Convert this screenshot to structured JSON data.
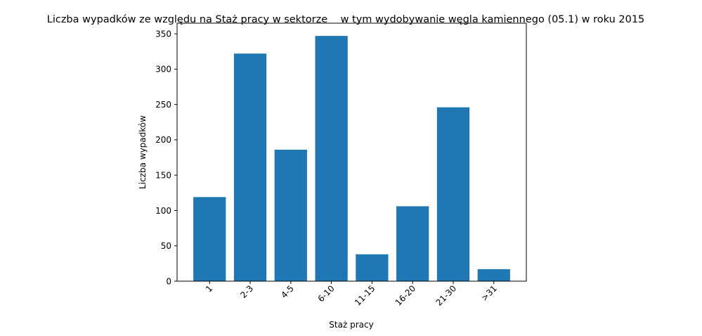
{
  "chart_data": {
    "type": "bar",
    "title": "Liczba wypadków ze względu na Staż pracy w sektorze    w tym wydobywanie węgla kamiennego (05.1) w roku 2015",
    "xlabel": "Staż pracy",
    "ylabel": "Liczba wypadków",
    "categories": [
      "1",
      "2-3",
      "4-5",
      "6-10",
      "11-15",
      "16-20",
      "21-30",
      ">31"
    ],
    "values": [
      119,
      322,
      186,
      347,
      38,
      106,
      246,
      17
    ],
    "ylim": [
      0,
      365
    ],
    "yticks": [
      0,
      50,
      100,
      150,
      200,
      250,
      300,
      350
    ],
    "bar_color": "#1f77b4",
    "grid": false,
    "legend": "none"
  }
}
